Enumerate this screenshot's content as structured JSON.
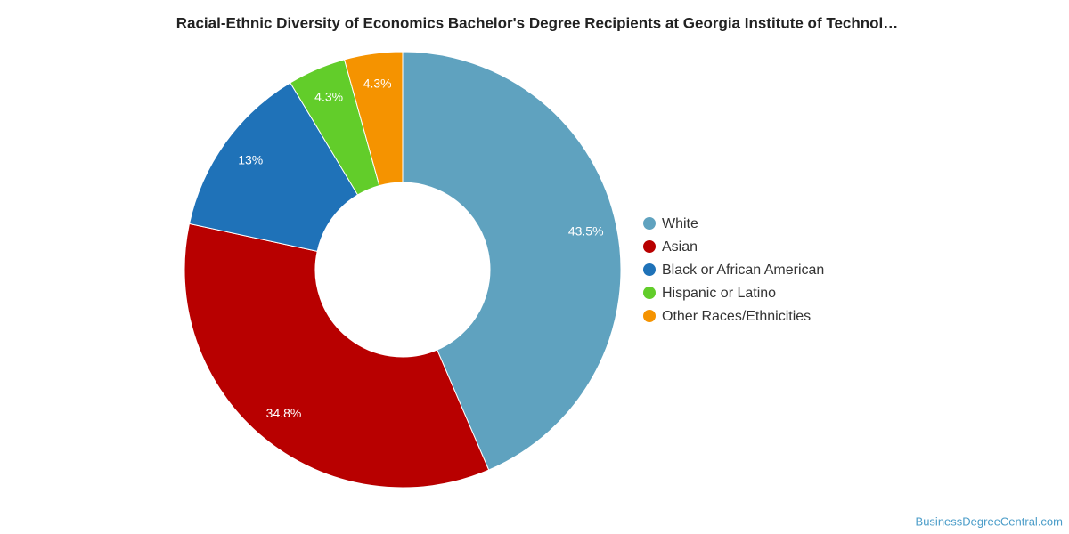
{
  "chart_data": {
    "type": "pie",
    "title": "Racial-Ethnic Diversity of Economics Bachelor's Degree Recipients at Georgia Institute of Technol…",
    "categories": [
      "White",
      "Asian",
      "Black or African American",
      "Hispanic or Latino",
      "Other Races/Ethnicities"
    ],
    "values": [
      43.5,
      34.8,
      13,
      4.3,
      4.3
    ],
    "value_labels": [
      "43.5%",
      "34.8%",
      "13%",
      "4.3%",
      "4.3%"
    ],
    "colors": [
      "#5fa2bf",
      "#b80000",
      "#1f72b8",
      "#62cd2a",
      "#f59300"
    ],
    "legend": "right",
    "credit": "BusinessDegreeCentral.com"
  }
}
